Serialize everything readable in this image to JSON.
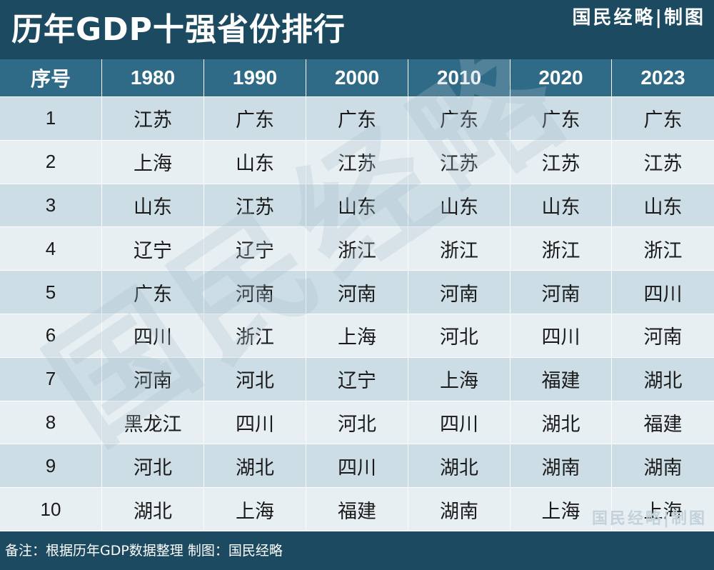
{
  "header": {
    "title": "历年GDP十强省份排行",
    "brand": "国民经略|制图"
  },
  "table": {
    "columns": [
      "序号",
      "1980",
      "1990",
      "2000",
      "2010",
      "2020",
      "2023"
    ],
    "rows": [
      [
        "1",
        "江苏",
        "广东",
        "广东",
        "广东",
        "广东",
        "广东"
      ],
      [
        "2",
        "上海",
        "山东",
        "江苏",
        "江苏",
        "江苏",
        "江苏"
      ],
      [
        "3",
        "山东",
        "江苏",
        "山东",
        "山东",
        "山东",
        "山东"
      ],
      [
        "4",
        "辽宁",
        "辽宁",
        "浙江",
        "浙江",
        "浙江",
        "浙江"
      ],
      [
        "5",
        "广东",
        "河南",
        "河南",
        "河南",
        "河南",
        "四川"
      ],
      [
        "6",
        "四川",
        "浙江",
        "上海",
        "河北",
        "四川",
        "河南"
      ],
      [
        "7",
        "河南",
        "河北",
        "辽宁",
        "上海",
        "福建",
        "湖北"
      ],
      [
        "8",
        "黑龙江",
        "四川",
        "河北",
        "四川",
        "湖北",
        "福建"
      ],
      [
        "9",
        "河北",
        "湖北",
        "四川",
        "湖北",
        "湖南",
        "湖南"
      ],
      [
        "10",
        "湖北",
        "上海",
        "福建",
        "湖南",
        "上海",
        "上海"
      ]
    ]
  },
  "footer": {
    "note": "备注：根据历年GDP数据整理 制图：国民经略"
  },
  "watermark": {
    "large_text": "国民经略",
    "small_text": "国民经略|制图",
    "color": "#a8c0cc"
  },
  "colors": {
    "title_bar": "#1c4a60",
    "header_row": "#2f6a86",
    "row_odd": "#cddde6",
    "row_even": "#e8eff3"
  }
}
